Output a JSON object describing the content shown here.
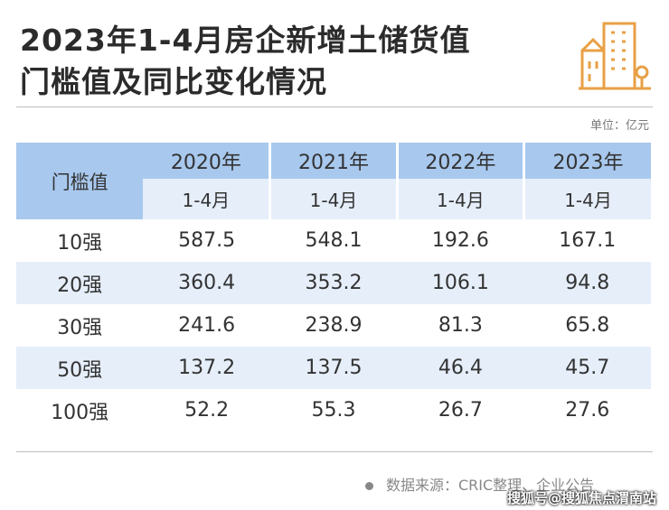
{
  "header": {
    "title": [
      "2023年1-4月房企新增土储货值",
      "门槛值及同比变化情况"
    ],
    "unit": "单位：亿元"
  },
  "table": {
    "corner": "门槛值",
    "years": [
      "2020年",
      "2021年",
      "2022年",
      "2023年"
    ],
    "periods": [
      "1-4月",
      "1-4月",
      "1-4月",
      "1-4月"
    ],
    "rows": [
      [
        "10强",
        "587.5",
        "548.1",
        "192.6",
        "167.1"
      ],
      [
        "20强",
        "360.4",
        "353.2",
        "106.1",
        "94.8"
      ],
      [
        "30强",
        "241.6",
        "238.9",
        "81.3",
        "65.8"
      ],
      [
        "50强",
        "137.2",
        "137.5",
        "46.4",
        "45.7"
      ],
      [
        "100强",
        "52.2",
        "55.3",
        "26.7",
        "27.6"
      ]
    ]
  },
  "footer": {
    "source": "数据来源：CRIC整理、企业公告",
    "watermark": "搜狐号@搜狐焦点渭南站"
  }
}
